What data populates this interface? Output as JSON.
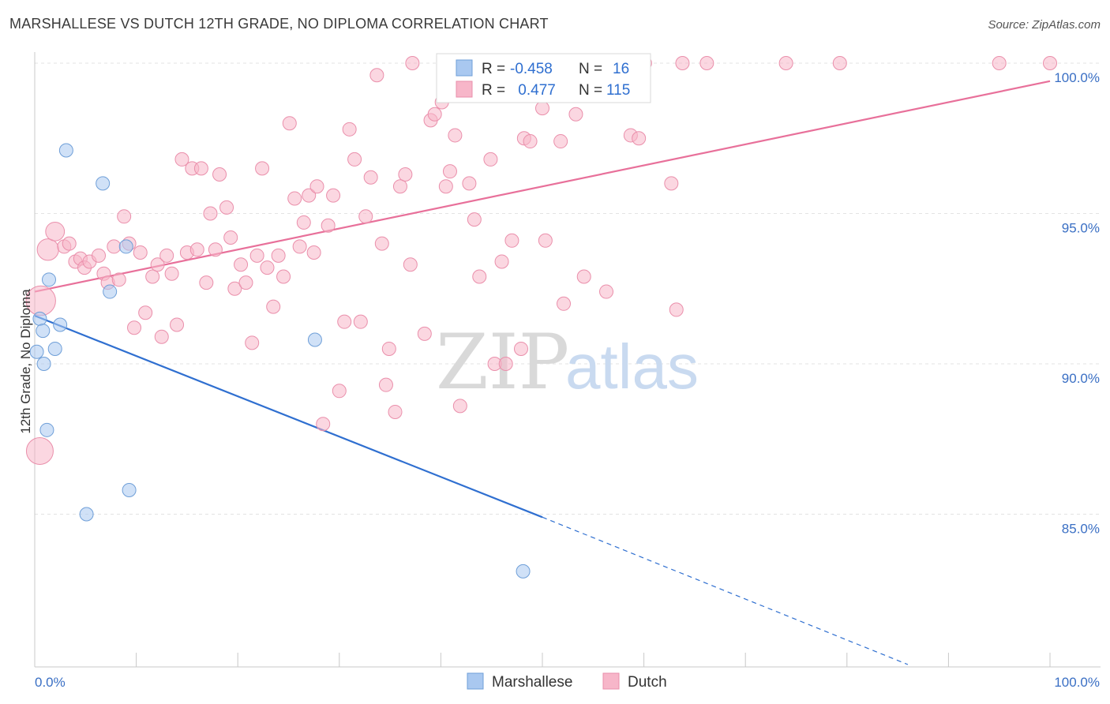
{
  "title": "MARSHALLESE VS DUTCH 12TH GRADE, NO DIPLOMA CORRELATION CHART",
  "source": "Source: ZipAtlas.com",
  "watermark": {
    "zip": "ZIP",
    "atlas": "atlas"
  },
  "legend_box": {
    "rows": [
      {
        "r_label": "R = ",
        "r_value": "-0.458",
        "n_label": "N = ",
        "n_value": "16",
        "color": "#a9c8f0"
      },
      {
        "r_label": "R = ",
        "r_value": " 0.477",
        "n_label": "N = ",
        "n_value": "115",
        "color": "#f7b6c9"
      }
    ]
  },
  "chart_data": {
    "type": "scatter",
    "ylabel": "12th Grade, No Diploma",
    "xlabel": "",
    "xlim": [
      0,
      100
    ],
    "ylim": [
      80,
      100.5
    ],
    "x_ticks": [
      "0.0%",
      "100.0%"
    ],
    "y_ticks": [
      {
        "value": 100,
        "label": "100.0%"
      },
      {
        "value": 95,
        "label": "95.0%"
      },
      {
        "value": 90,
        "label": "90.0%"
      },
      {
        "value": 85,
        "label": "85.0%"
      }
    ],
    "grid": true,
    "legend": [
      "Marshallese",
      "Dutch"
    ],
    "series": [
      {
        "name": "Marshallese",
        "color": "#a9c8f0",
        "stroke": "#6f9fd8",
        "line_color": "#2f6fd0",
        "trend": {
          "x0": 0,
          "y0": 91.6,
          "x1": 50,
          "y1": 84.9,
          "dash_to_x": 86,
          "dash_to_y": 80
        },
        "points": [
          {
            "x": 0.2,
            "y": 90.4,
            "s": 1
          },
          {
            "x": 0.5,
            "y": 91.5,
            "s": 1
          },
          {
            "x": 0.8,
            "y": 91.1,
            "s": 1
          },
          {
            "x": 0.9,
            "y": 90.0,
            "s": 1
          },
          {
            "x": 1.2,
            "y": 87.8,
            "s": 1
          },
          {
            "x": 1.4,
            "y": 92.8,
            "s": 1
          },
          {
            "x": 2.0,
            "y": 90.5,
            "s": 1
          },
          {
            "x": 2.5,
            "y": 91.3,
            "s": 1
          },
          {
            "x": 3.1,
            "y": 97.1,
            "s": 1
          },
          {
            "x": 5.1,
            "y": 85.0,
            "s": 1
          },
          {
            "x": 6.7,
            "y": 96.0,
            "s": 1
          },
          {
            "x": 7.4,
            "y": 92.4,
            "s": 1
          },
          {
            "x": 9.0,
            "y": 93.9,
            "s": 1
          },
          {
            "x": 9.3,
            "y": 85.8,
            "s": 1
          },
          {
            "x": 27.6,
            "y": 90.8,
            "s": 1
          },
          {
            "x": 48.1,
            "y": 83.1,
            "s": 1
          }
        ]
      },
      {
        "name": "Dutch",
        "color": "#f7b6c9",
        "stroke": "#ea8fab",
        "line_color": "#e8709a",
        "trend": {
          "x0": 0,
          "y0": 92.4,
          "x1": 100,
          "y1": 99.4
        },
        "points": [
          {
            "x": 0.6,
            "y": 92.1,
            "s": 2.2
          },
          {
            "x": 0.5,
            "y": 87.1,
            "s": 2.0
          },
          {
            "x": 1.3,
            "y": 93.8,
            "s": 1.6
          },
          {
            "x": 2.0,
            "y": 94.4,
            "s": 1.4
          },
          {
            "x": 2.9,
            "y": 93.9,
            "s": 1
          },
          {
            "x": 3.4,
            "y": 94.0,
            "s": 1
          },
          {
            "x": 4.0,
            "y": 93.4,
            "s": 1
          },
          {
            "x": 4.5,
            "y": 93.5,
            "s": 1
          },
          {
            "x": 4.9,
            "y": 93.2,
            "s": 1
          },
          {
            "x": 5.4,
            "y": 93.4,
            "s": 1
          },
          {
            "x": 6.3,
            "y": 93.6,
            "s": 1
          },
          {
            "x": 6.8,
            "y": 93.0,
            "s": 1
          },
          {
            "x": 7.2,
            "y": 92.7,
            "s": 1
          },
          {
            "x": 7.8,
            "y": 93.9,
            "s": 1
          },
          {
            "x": 8.3,
            "y": 92.8,
            "s": 1
          },
          {
            "x": 8.8,
            "y": 94.9,
            "s": 1
          },
          {
            "x": 9.3,
            "y": 94.0,
            "s": 1
          },
          {
            "x": 9.8,
            "y": 91.2,
            "s": 1
          },
          {
            "x": 10.4,
            "y": 93.7,
            "s": 1
          },
          {
            "x": 10.9,
            "y": 91.7,
            "s": 1
          },
          {
            "x": 11.6,
            "y": 92.9,
            "s": 1
          },
          {
            "x": 12.1,
            "y": 93.3,
            "s": 1
          },
          {
            "x": 12.5,
            "y": 90.9,
            "s": 1
          },
          {
            "x": 13.0,
            "y": 93.6,
            "s": 1
          },
          {
            "x": 13.5,
            "y": 93.0,
            "s": 1
          },
          {
            "x": 14.0,
            "y": 91.3,
            "s": 1
          },
          {
            "x": 14.5,
            "y": 96.8,
            "s": 1
          },
          {
            "x": 15.0,
            "y": 93.7,
            "s": 1
          },
          {
            "x": 15.5,
            "y": 96.5,
            "s": 1
          },
          {
            "x": 16.0,
            "y": 93.8,
            "s": 1
          },
          {
            "x": 16.4,
            "y": 96.5,
            "s": 1
          },
          {
            "x": 16.9,
            "y": 92.7,
            "s": 1
          },
          {
            "x": 17.3,
            "y": 95.0,
            "s": 1
          },
          {
            "x": 17.8,
            "y": 93.8,
            "s": 1
          },
          {
            "x": 18.2,
            "y": 96.3,
            "s": 1
          },
          {
            "x": 18.9,
            "y": 95.2,
            "s": 1
          },
          {
            "x": 19.3,
            "y": 94.2,
            "s": 1
          },
          {
            "x": 19.7,
            "y": 92.5,
            "s": 1
          },
          {
            "x": 20.3,
            "y": 93.3,
            "s": 1
          },
          {
            "x": 20.8,
            "y": 92.7,
            "s": 1
          },
          {
            "x": 21.4,
            "y": 90.7,
            "s": 1
          },
          {
            "x": 21.9,
            "y": 93.6,
            "s": 1
          },
          {
            "x": 22.4,
            "y": 96.5,
            "s": 1
          },
          {
            "x": 22.9,
            "y": 93.2,
            "s": 1
          },
          {
            "x": 23.5,
            "y": 91.9,
            "s": 1
          },
          {
            "x": 24.0,
            "y": 93.6,
            "s": 1
          },
          {
            "x": 24.5,
            "y": 92.9,
            "s": 1
          },
          {
            "x": 25.1,
            "y": 98.0,
            "s": 1
          },
          {
            "x": 25.6,
            "y": 95.5,
            "s": 1
          },
          {
            "x": 26.1,
            "y": 93.9,
            "s": 1
          },
          {
            "x": 26.5,
            "y": 94.7,
            "s": 1
          },
          {
            "x": 27.0,
            "y": 95.6,
            "s": 1
          },
          {
            "x": 27.5,
            "y": 93.7,
            "s": 1
          },
          {
            "x": 27.8,
            "y": 95.9,
            "s": 1
          },
          {
            "x": 28.4,
            "y": 88.0,
            "s": 1
          },
          {
            "x": 28.9,
            "y": 94.6,
            "s": 1
          },
          {
            "x": 29.4,
            "y": 95.6,
            "s": 1
          },
          {
            "x": 30.0,
            "y": 89.1,
            "s": 1
          },
          {
            "x": 30.5,
            "y": 91.4,
            "s": 1
          },
          {
            "x": 31.0,
            "y": 97.8,
            "s": 1
          },
          {
            "x": 31.5,
            "y": 96.8,
            "s": 1
          },
          {
            "x": 32.1,
            "y": 91.4,
            "s": 1
          },
          {
            "x": 32.6,
            "y": 94.9,
            "s": 1
          },
          {
            "x": 33.1,
            "y": 96.2,
            "s": 1
          },
          {
            "x": 33.7,
            "y": 99.6,
            "s": 1
          },
          {
            "x": 34.2,
            "y": 94.0,
            "s": 1
          },
          {
            "x": 34.6,
            "y": 89.3,
            "s": 1
          },
          {
            "x": 34.9,
            "y": 90.5,
            "s": 1
          },
          {
            "x": 35.5,
            "y": 88.4,
            "s": 1
          },
          {
            "x": 36.0,
            "y": 95.9,
            "s": 1
          },
          {
            "x": 36.5,
            "y": 96.3,
            "s": 1
          },
          {
            "x": 37.0,
            "y": 93.3,
            "s": 1
          },
          {
            "x": 37.2,
            "y": 100.0,
            "s": 1
          },
          {
            "x": 38.4,
            "y": 91.0,
            "s": 1
          },
          {
            "x": 39.0,
            "y": 98.1,
            "s": 1
          },
          {
            "x": 39.4,
            "y": 98.3,
            "s": 1
          },
          {
            "x": 40.1,
            "y": 98.7,
            "s": 1
          },
          {
            "x": 40.5,
            "y": 95.9,
            "s": 1
          },
          {
            "x": 40.9,
            "y": 96.4,
            "s": 1
          },
          {
            "x": 41.4,
            "y": 97.6,
            "s": 1
          },
          {
            "x": 41.9,
            "y": 88.6,
            "s": 1
          },
          {
            "x": 42.8,
            "y": 96.0,
            "s": 1
          },
          {
            "x": 43.3,
            "y": 94.8,
            "s": 1
          },
          {
            "x": 43.8,
            "y": 92.9,
            "s": 1
          },
          {
            "x": 44.9,
            "y": 96.8,
            "s": 1
          },
          {
            "x": 45.3,
            "y": 90.0,
            "s": 1
          },
          {
            "x": 46.0,
            "y": 93.4,
            "s": 1
          },
          {
            "x": 46.4,
            "y": 90.0,
            "s": 1
          },
          {
            "x": 47.0,
            "y": 94.1,
            "s": 1
          },
          {
            "x": 47.9,
            "y": 90.5,
            "s": 1
          },
          {
            "x": 48.2,
            "y": 97.5,
            "s": 1
          },
          {
            "x": 48.8,
            "y": 97.4,
            "s": 1
          },
          {
            "x": 50.0,
            "y": 98.5,
            "s": 1
          },
          {
            "x": 50.3,
            "y": 94.1,
            "s": 1
          },
          {
            "x": 51.8,
            "y": 97.4,
            "s": 1
          },
          {
            "x": 52.1,
            "y": 92.0,
            "s": 1
          },
          {
            "x": 53.3,
            "y": 98.3,
            "s": 1
          },
          {
            "x": 53.6,
            "y": 99.0,
            "s": 1
          },
          {
            "x": 54.1,
            "y": 92.9,
            "s": 1
          },
          {
            "x": 56.3,
            "y": 92.4,
            "s": 1
          },
          {
            "x": 58.7,
            "y": 97.6,
            "s": 1
          },
          {
            "x": 59.5,
            "y": 97.5,
            "s": 1
          },
          {
            "x": 60.1,
            "y": 100.0,
            "s": 1
          },
          {
            "x": 62.7,
            "y": 96.0,
            "s": 1
          },
          {
            "x": 63.2,
            "y": 91.8,
            "s": 1
          },
          {
            "x": 63.8,
            "y": 100.0,
            "s": 1
          },
          {
            "x": 66.2,
            "y": 100.0,
            "s": 1
          },
          {
            "x": 74.0,
            "y": 100.0,
            "s": 1
          },
          {
            "x": 79.3,
            "y": 100.0,
            "s": 1
          },
          {
            "x": 95.0,
            "y": 100.0,
            "s": 1
          },
          {
            "x": 100.0,
            "y": 100.0,
            "s": 1
          }
        ]
      }
    ]
  }
}
